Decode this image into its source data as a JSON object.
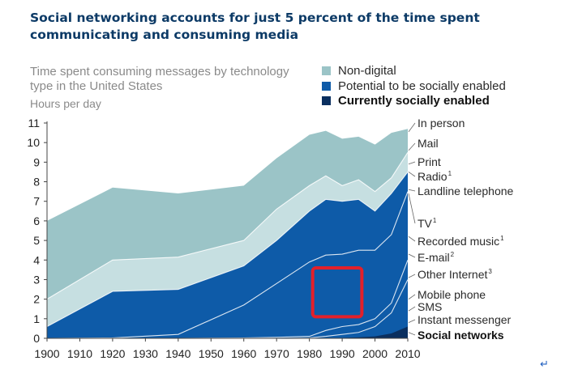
{
  "title": "Social networking accounts for just 5 percent of the time spent communicating and consuming media",
  "subtitle": "Time spent consuming messages by technology type in the United States",
  "return_mark": "↵",
  "colors": {
    "non_digital": "#9bc4c7",
    "potential": "#0e5ba8",
    "current": "#0a2f5f",
    "band_light": "#c6dfe1",
    "highlight": "#e3202a"
  },
  "chart_data": {
    "type": "area",
    "ylabel": "Hours per day",
    "xlabel": "",
    "xlim": [
      1900,
      2010
    ],
    "ylim": [
      0,
      11
    ],
    "x_ticks": [
      "1900",
      "1910",
      "1920",
      "1930",
      "1940",
      "1950",
      "1960",
      "1970",
      "1980",
      "1990",
      "2000",
      "2010"
    ],
    "y_ticks": [
      "0",
      "1",
      "2",
      "3",
      "4",
      "5",
      "6",
      "7",
      "8",
      "9",
      "10",
      "11"
    ],
    "grid": false,
    "legend_position": "top-right",
    "legend": [
      {
        "label": "Non-digital",
        "color": "#9bc4c7",
        "bold": false
      },
      {
        "label": "Potential to be socially enabled",
        "color": "#0e5ba8",
        "bold": false
      },
      {
        "label": "Currently socially enabled",
        "color": "#0a2f5f",
        "bold": true
      }
    ],
    "categories": [
      {
        "label": "In person",
        "sup": ""
      },
      {
        "label": "Mail",
        "sup": ""
      },
      {
        "label": "Print",
        "sup": ""
      },
      {
        "label": "Radio",
        "sup": "1"
      },
      {
        "label": "Landline telephone",
        "sup": ""
      },
      {
        "label": "TV",
        "sup": "1"
      },
      {
        "label": "Recorded music",
        "sup": "1"
      },
      {
        "label": "E-mail",
        "sup": "2"
      },
      {
        "label": "Other Internet",
        "sup": "3"
      },
      {
        "label": "Mobile phone",
        "sup": ""
      },
      {
        "label": "SMS",
        "sup": ""
      },
      {
        "label": "Instant messenger",
        "sup": ""
      },
      {
        "label": "Social networks",
        "sup": "",
        "bold": true
      }
    ],
    "x": [
      1900,
      1920,
      1940,
      1960,
      1970,
      1980,
      1985,
      1990,
      1995,
      2000,
      2005,
      2010
    ],
    "series": [
      {
        "name": "Non-digital",
        "values": [
          6.0,
          7.7,
          7.4,
          7.8,
          9.2,
          10.4,
          10.6,
          10.2,
          10.3,
          9.9,
          10.5,
          10.7
        ]
      },
      {
        "name": "Potential to be socially enabled",
        "values": [
          0.6,
          2.4,
          2.5,
          3.7,
          5.0,
          6.5,
          7.1,
          7.0,
          7.1,
          6.5,
          7.4,
          8.5
        ]
      },
      {
        "name": "Currently socially enabled",
        "values": [
          0.0,
          0.0,
          0.0,
          0.0,
          0.0,
          0.0,
          0.0,
          0.02,
          0.05,
          0.1,
          0.25,
          0.6
        ]
      }
    ],
    "boundaries": [
      [
        2.0,
        4.0,
        4.15,
        5.0,
        6.6,
        7.8,
        8.3,
        7.8,
        8.1,
        7.5,
        8.2,
        9.5
      ],
      [
        0.6,
        2.4,
        2.5,
        3.7,
        5.0,
        6.5,
        7.1,
        7.0,
        7.1,
        6.5,
        7.4,
        8.5
      ],
      [
        0.0,
        0.02,
        0.2,
        1.7,
        2.8,
        3.9,
        4.25,
        4.3,
        4.5,
        4.5,
        5.3,
        7.5
      ],
      [
        0.0,
        0.0,
        0.0,
        0.02,
        0.05,
        0.1,
        0.4,
        0.6,
        0.7,
        1.0,
        1.8,
        4.0
      ],
      [
        0.0,
        0.0,
        0.0,
        0.0,
        0.0,
        0.02,
        0.1,
        0.2,
        0.3,
        0.6,
        1.3,
        3.0
      ]
    ],
    "highlight_box": {
      "x0": 1981,
      "x1": 1996,
      "y0": 1.1,
      "y1": 3.6
    }
  }
}
